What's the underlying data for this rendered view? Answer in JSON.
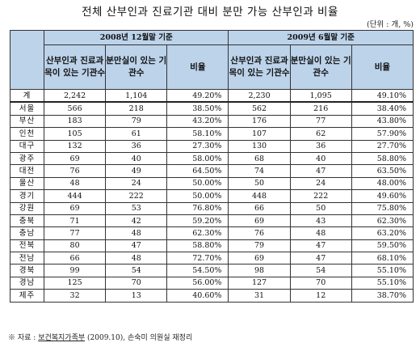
{
  "title": "전체 산부인과 진료기관 대비 분만 가능 산부인과 비율",
  "unit": "(단위 : 개, %)",
  "table": {
    "group_headers": [
      "2008년 12월말 기준",
      "2009년 6월말 기준"
    ],
    "column_headers": [
      "산부인과 진료과목이 있는 기관수",
      "분만실이 있는 기관수",
      "비율",
      "산부인과 진료과목이 있는 기관수",
      "분만실이 있는 기관수",
      "비율"
    ],
    "rows": [
      {
        "region": "계",
        "a1": "2,242",
        "b1": "1,104",
        "r1": "49.20%",
        "a2": "2,230",
        "b2": "1,095",
        "r2": "49.10%"
      },
      {
        "region": "서울",
        "a1": "566",
        "b1": "218",
        "r1": "38.50%",
        "a2": "562",
        "b2": "216",
        "r2": "38.40%"
      },
      {
        "region": "부산",
        "a1": "183",
        "b1": "79",
        "r1": "43.20%",
        "a2": "176",
        "b2": "77",
        "r2": "43.80%"
      },
      {
        "region": "인천",
        "a1": "105",
        "b1": "61",
        "r1": "58.10%",
        "a2": "107",
        "b2": "62",
        "r2": "57.90%"
      },
      {
        "region": "대구",
        "a1": "132",
        "b1": "36",
        "r1": "27.30%",
        "a2": "130",
        "b2": "36",
        "r2": "27.70%"
      },
      {
        "region": "광주",
        "a1": "69",
        "b1": "40",
        "r1": "58.00%",
        "a2": "68",
        "b2": "40",
        "r2": "58.80%"
      },
      {
        "region": "대전",
        "a1": "76",
        "b1": "49",
        "r1": "64.50%",
        "a2": "74",
        "b2": "47",
        "r2": "63.50%"
      },
      {
        "region": "울산",
        "a1": "48",
        "b1": "24",
        "r1": "50.00%",
        "a2": "50",
        "b2": "24",
        "r2": "48.00%"
      },
      {
        "region": "경기",
        "a1": "444",
        "b1": "222",
        "r1": "50.00%",
        "a2": "448",
        "b2": "222",
        "r2": "49.60%"
      },
      {
        "region": "강원",
        "a1": "69",
        "b1": "53",
        "r1": "76.80%",
        "a2": "66",
        "b2": "50",
        "r2": "75.80%"
      },
      {
        "region": "충북",
        "a1": "71",
        "b1": "42",
        "r1": "59.20%",
        "a2": "69",
        "b2": "43",
        "r2": "62.30%"
      },
      {
        "region": "충남",
        "a1": "77",
        "b1": "48",
        "r1": "62.30%",
        "a2": "76",
        "b2": "48",
        "r2": "63.20%"
      },
      {
        "region": "전북",
        "a1": "80",
        "b1": "47",
        "r1": "58.80%",
        "a2": "79",
        "b2": "47",
        "r2": "59.50%"
      },
      {
        "region": "전남",
        "a1": "66",
        "b1": "48",
        "r1": "72.70%",
        "a2": "69",
        "b2": "47",
        "r2": "68.10%"
      },
      {
        "region": "경북",
        "a1": "99",
        "b1": "54",
        "r1": "54.50%",
        "a2": "98",
        "b2": "54",
        "r2": "55.10%"
      },
      {
        "region": "경남",
        "a1": "125",
        "b1": "70",
        "r1": "56.00%",
        "a2": "127",
        "b2": "70",
        "r2": "55.10%"
      },
      {
        "region": "제주",
        "a1": "32",
        "b1": "13",
        "r1": "40.60%",
        "a2": "31",
        "b2": "12",
        "r2": "38.70%"
      }
    ]
  },
  "note": {
    "prefix": "※ 자료 : ",
    "source": "보건복지가족부",
    "suffix": " (2009.10), 손숙미 의원실 재정리"
  },
  "colors": {
    "header_bg": "#bcd3ea",
    "border": "#333333"
  }
}
